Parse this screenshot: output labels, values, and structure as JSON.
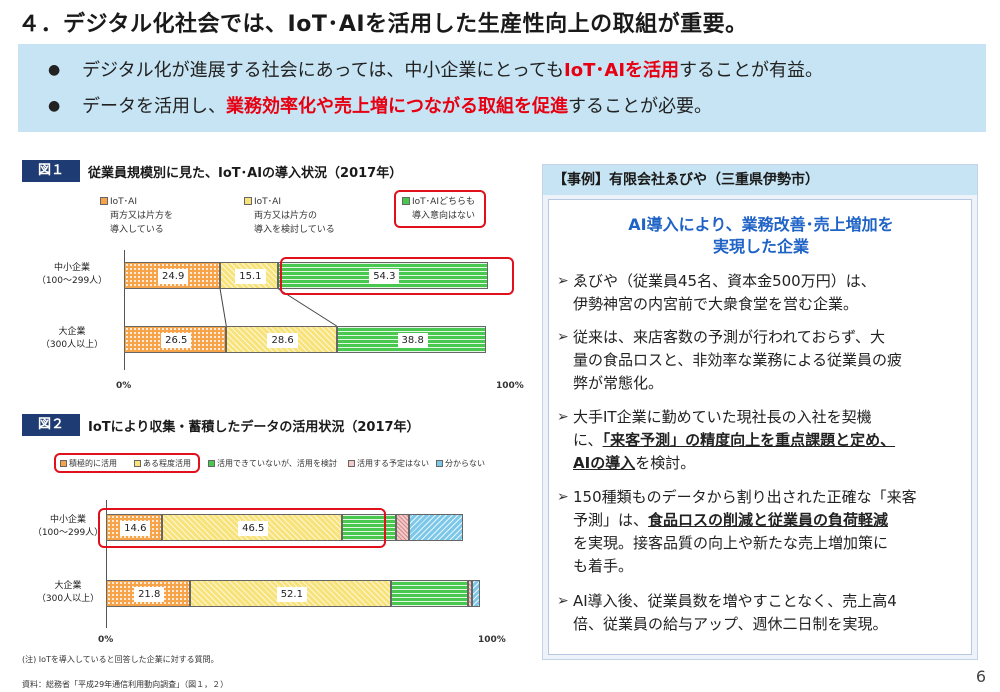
{
  "title": "４．デジタル化社会では、IoT･AIを活用した生産性向上の取組が重要。",
  "summary": {
    "line1": {
      "pre": "デジタル化が進展する社会にあっては、中小企業にとっても",
      "hl": "IoT･AIを活用",
      "post": "することが有益。"
    },
    "line2": {
      "pre": "データを活用し、",
      "hl": "業務効率化や売上増につながる取組を促進",
      "post": "することが必要。"
    }
  },
  "fig1": {
    "tag": "図１",
    "title": "従業員規模別に見た、IoT･AIの導入状況（2017年）",
    "legend": [
      {
        "line1": "IoT･AI",
        "line2": "両方又は片方を",
        "line3": "導入している"
      },
      {
        "line1": "IoT･AI",
        "line2": "両方又は片方の",
        "line3": "導入を検討している"
      },
      {
        "line1": "IoT･AIどちらも",
        "line2": "導入意向はない"
      }
    ],
    "axis_min": "0%",
    "axis_max": "100%"
  },
  "fig2": {
    "tag": "図２",
    "title": "IoTにより収集・蓄積したデータの活用状況（2017年）",
    "legend": [
      "積極的に活用",
      "ある程度活用",
      "活用できていないが、活用を検討",
      "活用する予定はない",
      "分からない"
    ],
    "axis_min": "0%",
    "axis_max": "100%",
    "note": "(注) IoTを導入していると回答した企業に対する質問。"
  },
  "chart_data": [
    {
      "type": "bar",
      "orientation": "horizontal-stacked",
      "title": "従業員規模別に見た、IoT･AIの導入状況（2017年）",
      "categories": [
        {
          "line1": "中小企業",
          "line2": "（100～299人）"
        },
        {
          "line1": "大企業",
          "line2": "（300人以上）"
        }
      ],
      "series": [
        {
          "name": "IoT･AI 両方又は片方を導入している",
          "values": [
            24.9,
            26.5
          ],
          "color": "#f7a34a"
        },
        {
          "name": "IoT･AI 両方又は片方の導入を検討している",
          "values": [
            15.1,
            28.6
          ],
          "color": "#f8e27a"
        },
        {
          "name": "IoT･AIどちらも導入意向はない",
          "values": [
            54.3,
            38.8
          ],
          "color": "#48c84e"
        }
      ],
      "xlim": [
        0,
        100
      ]
    },
    {
      "type": "bar",
      "orientation": "horizontal-stacked",
      "title": "IoTにより収集・蓄積したデータの活用状況（2017年）",
      "categories": [
        {
          "line1": "中小企業",
          "line2": "（100～299人）"
        },
        {
          "line1": "大企業",
          "line2": "（300人以上）"
        }
      ],
      "series": [
        {
          "name": "積極的に活用",
          "values": [
            14.6,
            21.8
          ],
          "color": "#f7a34a",
          "labeled": true
        },
        {
          "name": "ある程度活用",
          "values": [
            46.5,
            52.1
          ],
          "color": "#f8e27a",
          "labeled": true
        },
        {
          "name": "活用できていないが、活用を検討",
          "values": [
            14.0,
            20.0
          ],
          "color": "#48c84e"
        },
        {
          "name": "活用する予定はない",
          "values": [
            3.5,
            1.0
          ],
          "color": "#f3c9c9"
        },
        {
          "name": "分からない",
          "values": [
            14.0,
            2.0
          ],
          "color": "#7dc8e8"
        }
      ],
      "xlim": [
        0,
        100
      ]
    }
  ],
  "source": "資料：総務省「平成29年通信利用動向調査」（図１，２）",
  "case": {
    "header": "【事例】有限会社ゑびや（三重県伊勢市）",
    "heading1": "AI導入により、業務改善･売上増加を",
    "heading2": "実現した企業",
    "item1": {
      "l1": "ゑびや（従業員45名、資本金500万円）は、",
      "l2": "伊勢神宮の内宮前で大衆食堂を営む企業。"
    },
    "item2": {
      "l1": "従来は、来店客数の予測が行われておらず、大",
      "l2": "量の食品ロスと、非効率な業務による従業員の疲",
      "l3": "弊が常態化。"
    },
    "item3": {
      "l1": "大手IT企業に勤めていた現社長の入社を契機",
      "l2a": "に、",
      "l2b": "「来客予測」の精度向上を重点課題と定め、",
      "l3a": "AIの導入",
      "l3b": "を検討。"
    },
    "item4": {
      "l1": "150種類ものデータから割り出された正確な「来客",
      "l2a": "予測」は、",
      "l2b": "食品ロスの削減と従業員の負荷軽減",
      "l3": "を実現。接客品質の向上や新たな売上増加策に",
      "l4": "も着手。"
    },
    "item5": {
      "l1": "AI導入後、従業員数を増やすことなく、売上高4",
      "l2": "倍、従業員の給与アップ、週休二日制を実現。"
    }
  },
  "page_number": "6",
  "colors": {
    "accent_red": "#e60012",
    "navy": "#1f3b73",
    "light_blue": "#c6e4f3",
    "heading_blue": "#1f63c6"
  }
}
